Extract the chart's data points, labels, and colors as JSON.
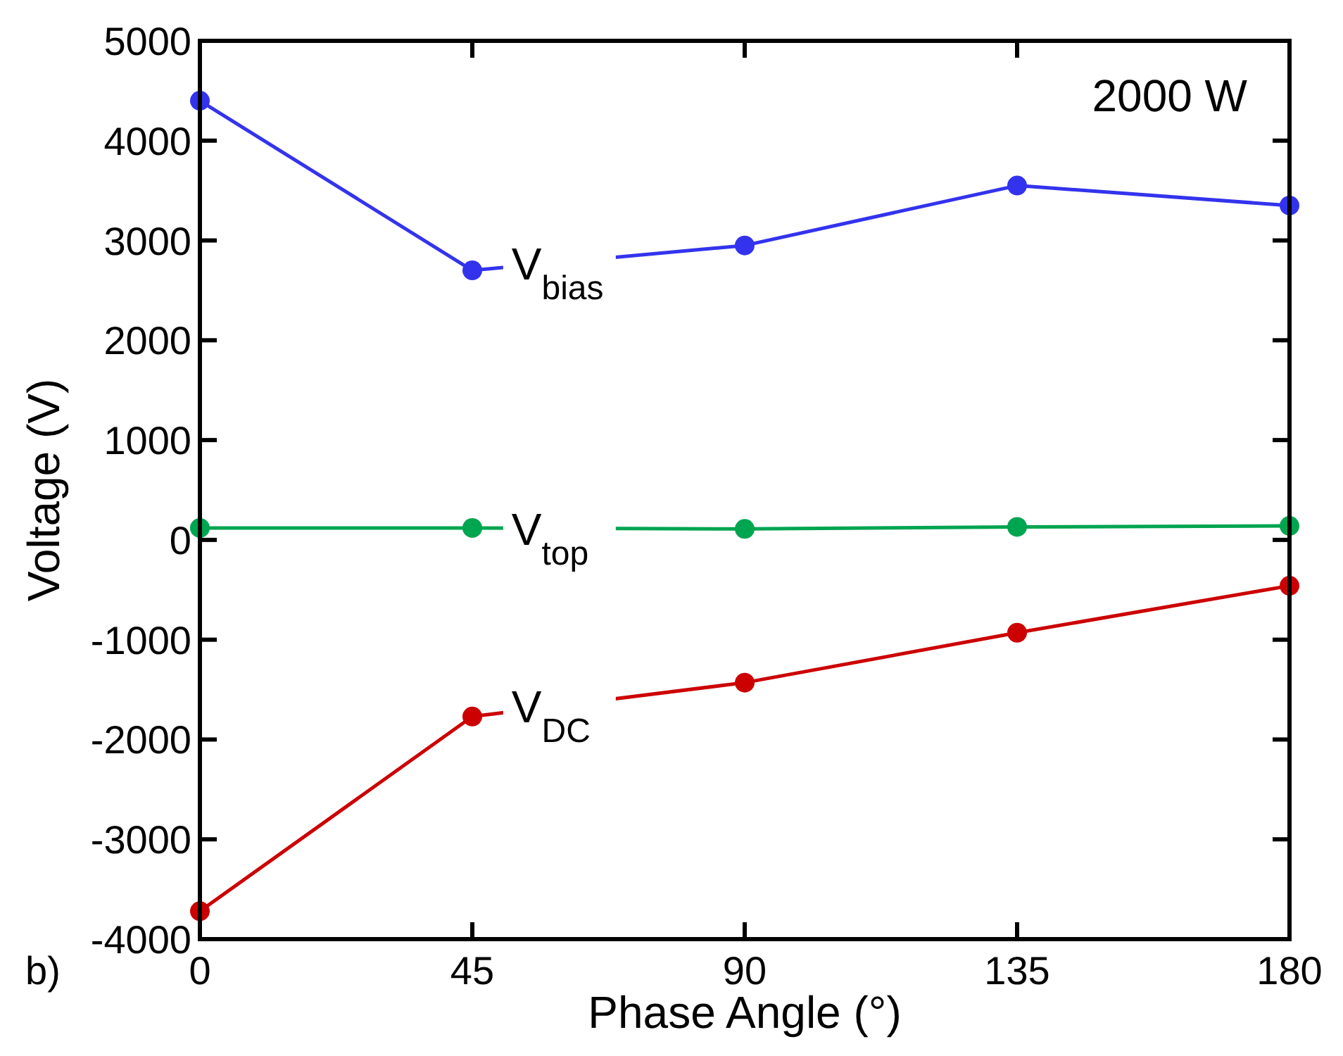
{
  "chart_data": {
    "type": "line",
    "xlabel": "Phase Angle (°)",
    "ylabel": "Voltage (V)",
    "x": [
      0,
      45,
      90,
      135,
      180
    ],
    "xlim": [
      0,
      180
    ],
    "xticks": [
      0,
      45,
      90,
      135,
      180
    ],
    "ylim": [
      -4000,
      5000
    ],
    "yticks": [
      -4000,
      -3000,
      -2000,
      -1000,
      0,
      1000,
      2000,
      3000,
      4000,
      5000
    ],
    "marker": "circle",
    "line_style": "solid",
    "grid": false,
    "series": [
      {
        "name": "V$_{bias}$",
        "color": "#3333ee",
        "values": [
          4400,
          2700,
          2950,
          3550,
          3350
        ]
      },
      {
        "name": "V$_{top}$",
        "color": "#00a550",
        "values": [
          120,
          120,
          110,
          130,
          140
        ]
      },
      {
        "name": "V$_{DC}$",
        "color": "#cc0000",
        "values": [
          -3720,
          -1770,
          -1430,
          -930,
          -460
        ]
      }
    ],
    "annotations": [
      "2000 W",
      "b)"
    ]
  }
}
